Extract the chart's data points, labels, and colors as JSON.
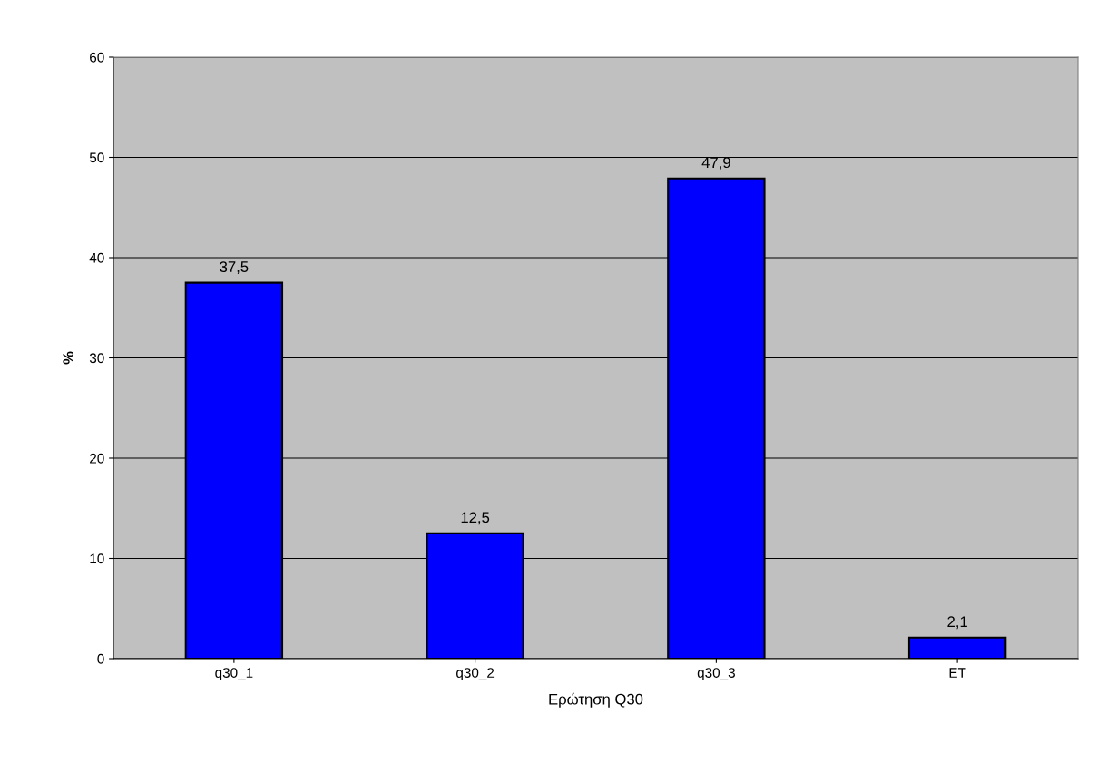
{
  "chart_data": {
    "type": "bar",
    "xlabel": "Ερώτηση Q30",
    "ylabel": "%",
    "categories": [
      "q30_1",
      "q30_2",
      "q30_3",
      "ET"
    ],
    "values": [
      37.5,
      12.5,
      47.9,
      2.1
    ],
    "value_labels": [
      "37,5",
      "12,5",
      "47,9",
      "2,1"
    ],
    "color": "#0000ff",
    "ylim": [
      0,
      60
    ],
    "yticks": [
      0,
      10,
      20,
      30,
      40,
      50,
      60
    ],
    "grid": "y"
  }
}
